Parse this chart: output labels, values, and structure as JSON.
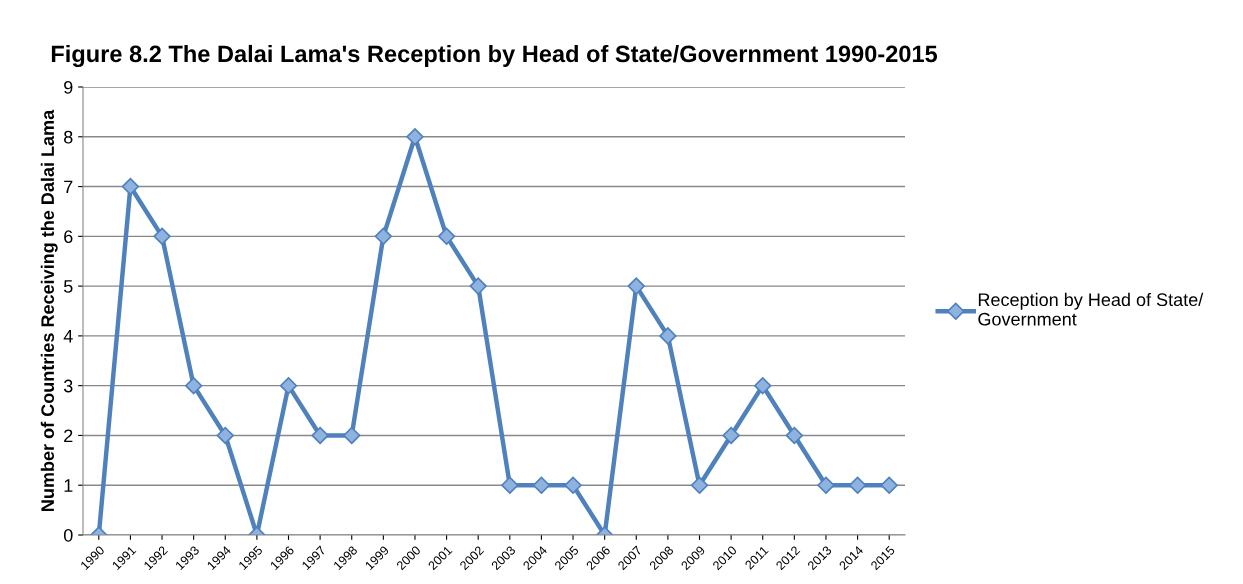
{
  "chart_data": {
    "type": "line",
    "title": "Figure 8.2 The Dalai Lama's Reception by Head of State/Government 1990-2015",
    "ylabel": "Number of Countries Receiving the Dalai Lama",
    "categories": [
      "1990",
      "1991",
      "1992",
      "1993",
      "1994",
      "1995",
      "1996",
      "1997",
      "1998",
      "1999",
      "2000",
      "2001",
      "2002",
      "2003",
      "2004",
      "2005",
      "2006",
      "2007",
      "2008",
      "2009",
      "2010",
      "2011",
      "2012",
      "2013",
      "2014",
      "2015"
    ],
    "series": [
      {
        "name": "Reception by Head of State/\nGovernment",
        "color": "#4f81bd",
        "values": [
          0,
          7,
          6,
          3,
          2,
          0,
          3,
          2,
          2,
          6,
          8,
          6,
          5,
          1,
          1,
          1,
          0,
          5,
          4,
          1,
          2,
          3,
          2,
          1,
          1,
          1
        ]
      }
    ],
    "ylim": [
      0,
      9
    ],
    "yticks": [
      0,
      1,
      2,
      3,
      4,
      5,
      6,
      7,
      8,
      9
    ],
    "grid": "y",
    "legend": "right",
    "marker": "diamond",
    "line_style": "solid"
  }
}
